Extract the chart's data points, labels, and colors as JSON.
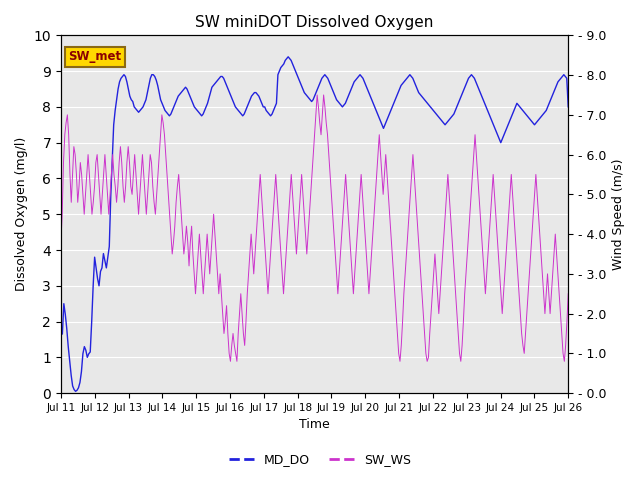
{
  "title": "SW miniDOT Dissolved Oxygen",
  "xlabel": "Time",
  "ylabel_left": "Dissolved Oxygen (mg/l)",
  "ylabel_right": "Wind Speed (m/s)",
  "ylim_left": [
    0,
    10
  ],
  "ylim_right": [
    0,
    9
  ],
  "yticks_left": [
    0.0,
    1.0,
    2.0,
    3.0,
    4.0,
    5.0,
    6.0,
    7.0,
    8.0,
    9.0,
    10.0
  ],
  "yticks_right_vals": [
    0.0,
    1.0,
    2.0,
    3.0,
    4.0,
    5.0,
    6.0,
    7.0,
    8.0,
    9.0
  ],
  "yticks_right_labels": [
    "0.0",
    "1.0",
    "2.0",
    "3.0",
    "4.0",
    "5.0",
    "6.0",
    "7.0",
    "8.0",
    "9.0"
  ],
  "background_color": "#e8e8e8",
  "line1_color": "#2222dd",
  "line2_color": "#cc33cc",
  "station_label": "SW_met",
  "legend_labels": [
    "MD_DO",
    "SW_WS"
  ],
  "md_do": [
    1.8,
    1.65,
    2.5,
    2.2,
    1.8,
    1.3,
    0.9,
    0.5,
    0.2,
    0.1,
    0.05,
    0.08,
    0.15,
    0.3,
    0.6,
    1.1,
    1.3,
    1.2,
    1.0,
    1.1,
    1.15,
    2.0,
    3.0,
    3.8,
    3.5,
    3.2,
    3.0,
    3.4,
    3.5,
    3.9,
    3.7,
    3.5,
    3.8,
    4.1,
    5.5,
    6.5,
    7.5,
    7.9,
    8.2,
    8.5,
    8.7,
    8.8,
    8.85,
    8.9,
    8.85,
    8.7,
    8.5,
    8.3,
    8.2,
    8.15,
    8.0,
    7.95,
    7.9,
    7.85,
    7.9,
    7.95,
    8.0,
    8.1,
    8.2,
    8.4,
    8.6,
    8.8,
    8.9,
    8.9,
    8.85,
    8.75,
    8.6,
    8.4,
    8.2,
    8.1,
    8.0,
    7.9,
    7.85,
    7.8,
    7.75,
    7.8,
    7.9,
    8.0,
    8.1,
    8.2,
    8.3,
    8.35,
    8.4,
    8.45,
    8.5,
    8.55,
    8.5,
    8.4,
    8.3,
    8.2,
    8.1,
    8.0,
    7.95,
    7.9,
    7.85,
    7.8,
    7.75,
    7.8,
    7.9,
    8.0,
    8.1,
    8.25,
    8.4,
    8.55,
    8.6,
    8.65,
    8.7,
    8.75,
    8.8,
    8.85,
    8.85,
    8.8,
    8.7,
    8.6,
    8.5,
    8.4,
    8.3,
    8.2,
    8.1,
    8.0,
    7.95,
    7.9,
    7.85,
    7.8,
    7.75,
    7.8,
    7.9,
    8.0,
    8.1,
    8.2,
    8.3,
    8.35,
    8.4,
    8.4,
    8.35,
    8.3,
    8.2,
    8.1,
    8.0,
    8.0,
    7.9,
    7.85,
    7.8,
    7.75,
    7.8,
    7.9,
    8.0,
    8.1,
    8.9,
    9.0,
    9.1,
    9.15,
    9.2,
    9.3,
    9.35,
    9.4,
    9.35,
    9.3,
    9.2,
    9.1,
    9.0,
    8.9,
    8.8,
    8.7,
    8.6,
    8.5,
    8.4,
    8.35,
    8.3,
    8.25,
    8.2,
    8.15,
    8.2,
    8.3,
    8.4,
    8.5,
    8.6,
    8.7,
    8.8,
    8.85,
    8.9,
    8.85,
    8.8,
    8.7,
    8.6,
    8.5,
    8.4,
    8.3,
    8.2,
    8.15,
    8.1,
    8.05,
    8.0,
    8.05,
    8.1,
    8.2,
    8.3,
    8.4,
    8.5,
    8.6,
    8.7,
    8.75,
    8.8,
    8.85,
    8.9,
    8.85,
    8.8,
    8.7,
    8.6,
    8.5,
    8.4,
    8.3,
    8.2,
    8.1,
    8.0,
    7.9,
    7.8,
    7.7,
    7.6,
    7.5,
    7.4,
    7.5,
    7.6,
    7.7,
    7.8,
    7.9,
    8.0,
    8.1,
    8.2,
    8.3,
    8.4,
    8.5,
    8.6,
    8.65,
    8.7,
    8.75,
    8.8,
    8.85,
    8.9,
    8.85,
    8.8,
    8.7,
    8.6,
    8.5,
    8.4,
    8.35,
    8.3,
    8.25,
    8.2,
    8.15,
    8.1,
    8.05,
    8.0,
    7.95,
    7.9,
    7.85,
    7.8,
    7.75,
    7.7,
    7.65,
    7.6,
    7.55,
    7.5,
    7.55,
    7.6,
    7.65,
    7.7,
    7.75,
    7.8,
    7.9,
    8.0,
    8.1,
    8.2,
    8.3,
    8.4,
    8.5,
    8.6,
    8.7,
    8.8,
    8.85,
    8.9,
    8.85,
    8.8,
    8.7,
    8.6,
    8.5,
    8.4,
    8.3,
    8.2,
    8.1,
    8.0,
    7.9,
    7.8,
    7.7,
    7.6,
    7.5,
    7.4,
    7.3,
    7.2,
    7.1,
    7.0,
    7.1,
    7.2,
    7.3,
    7.4,
    7.5,
    7.6,
    7.7,
    7.8,
    7.9,
    8.0,
    8.1,
    8.05,
    8.0,
    7.95,
    7.9,
    7.85,
    7.8,
    7.75,
    7.7,
    7.65,
    7.6,
    7.55,
    7.5,
    7.55,
    7.6,
    7.65,
    7.7,
    7.75,
    7.8,
    7.85,
    7.9,
    8.0,
    8.1,
    8.2,
    8.3,
    8.4,
    8.5,
    8.6,
    8.7,
    8.75,
    8.8,
    8.85,
    8.9,
    8.85,
    8.8,
    8.0
  ],
  "sw_ws": [
    3.8,
    4.5,
    5.8,
    6.5,
    6.8,
    7.0,
    6.5,
    5.5,
    4.8,
    5.5,
    6.2,
    6.0,
    5.5,
    4.8,
    5.2,
    5.8,
    5.5,
    5.0,
    4.5,
    5.0,
    5.5,
    6.0,
    5.5,
    5.0,
    4.5,
    4.8,
    5.2,
    5.8,
    6.0,
    5.5,
    5.0,
    4.5,
    5.0,
    5.5,
    6.0,
    5.5,
    5.0,
    4.5,
    5.0,
    5.5,
    6.0,
    5.5,
    5.2,
    4.8,
    5.2,
    5.8,
    6.2,
    5.8,
    5.2,
    4.8,
    5.2,
    5.8,
    6.2,
    5.8,
    5.2,
    5.0,
    5.5,
    6.0,
    5.5,
    5.0,
    4.5,
    5.0,
    5.5,
    6.0,
    5.5,
    5.0,
    4.5,
    5.0,
    5.5,
    6.0,
    5.8,
    5.2,
    4.8,
    4.5,
    5.0,
    5.5,
    6.0,
    6.5,
    7.0,
    6.8,
    6.5,
    6.0,
    5.5,
    5.0,
    4.5,
    4.0,
    3.5,
    3.8,
    4.2,
    4.8,
    5.2,
    5.5,
    5.0,
    4.5,
    4.0,
    3.5,
    3.8,
    4.2,
    3.8,
    3.2,
    3.8,
    4.2,
    3.5,
    3.0,
    2.5,
    3.0,
    3.5,
    4.0,
    3.5,
    3.0,
    2.5,
    3.0,
    3.5,
    4.0,
    3.5,
    3.0,
    3.5,
    4.0,
    4.5,
    4.0,
    3.5,
    3.0,
    2.5,
    3.0,
    2.5,
    2.0,
    1.5,
    1.8,
    2.2,
    1.5,
    1.0,
    0.8,
    1.2,
    1.5,
    1.2,
    1.0,
    0.8,
    1.5,
    2.0,
    2.5,
    2.0,
    1.5,
    1.2,
    1.8,
    2.5,
    3.0,
    3.5,
    4.0,
    3.5,
    3.0,
    3.5,
    4.0,
    4.5,
    5.0,
    5.5,
    5.0,
    4.5,
    4.0,
    3.5,
    3.0,
    2.5,
    3.0,
    3.5,
    4.0,
    4.5,
    5.0,
    5.5,
    5.0,
    4.5,
    4.0,
    3.5,
    3.0,
    2.5,
    3.0,
    3.5,
    4.0,
    4.5,
    5.0,
    5.5,
    5.0,
    4.5,
    4.0,
    3.5,
    4.0,
    4.5,
    5.0,
    5.5,
    5.0,
    4.5,
    4.0,
    3.5,
    4.0,
    4.5,
    5.0,
    5.5,
    6.0,
    6.5,
    7.0,
    7.5,
    7.2,
    6.8,
    6.5,
    7.0,
    7.5,
    7.2,
    6.8,
    6.5,
    6.0,
    5.5,
    5.0,
    4.5,
    4.0,
    3.5,
    3.0,
    2.5,
    3.0,
    3.5,
    4.0,
    4.5,
    5.0,
    5.5,
    5.0,
    4.5,
    4.0,
    3.5,
    3.0,
    2.5,
    3.0,
    3.5,
    4.0,
    4.5,
    5.0,
    5.5,
    5.0,
    4.5,
    4.0,
    3.5,
    3.0,
    2.5,
    3.0,
    3.5,
    4.0,
    4.5,
    5.0,
    5.5,
    6.0,
    6.5,
    6.0,
    5.5,
    5.0,
    5.5,
    6.0,
    5.5,
    5.0,
    4.5,
    4.0,
    3.5,
    3.0,
    2.5,
    2.0,
    1.5,
    1.0,
    0.8,
    1.2,
    1.8,
    2.5,
    3.0,
    3.5,
    4.0,
    4.5,
    5.0,
    5.5,
    6.0,
    5.5,
    5.0,
    4.5,
    4.0,
    3.5,
    3.0,
    2.5,
    2.0,
    1.5,
    1.0,
    0.8,
    0.9,
    1.5,
    2.0,
    2.5,
    3.0,
    3.5,
    3.0,
    2.5,
    2.0,
    2.5,
    3.0,
    3.5,
    4.0,
    4.5,
    5.0,
    5.5,
    5.0,
    4.5,
    4.0,
    3.5,
    3.0,
    2.5,
    2.0,
    1.5,
    1.0,
    0.8,
    1.2,
    1.8,
    2.5,
    3.0,
    3.5,
    4.0,
    4.5,
    5.0,
    5.5,
    6.0,
    6.5,
    6.0,
    5.5,
    5.0,
    4.5,
    4.0,
    3.5,
    3.0,
    2.5,
    3.0,
    3.5,
    4.0,
    4.5,
    5.0,
    5.5,
    5.0,
    4.5,
    4.0,
    3.5,
    3.0,
    2.5,
    2.0,
    2.5,
    3.0,
    3.5,
    4.0,
    4.5,
    5.0,
    5.5,
    5.0,
    4.5,
    4.0,
    3.5,
    3.0,
    2.5,
    2.0,
    1.5,
    1.2,
    1.0,
    1.5,
    2.0,
    2.5,
    3.0,
    3.5,
    4.0,
    4.5,
    5.0,
    5.5,
    5.0,
    4.5,
    4.0,
    3.5,
    3.0,
    2.5,
    2.0,
    2.5,
    3.0,
    2.5,
    2.0,
    2.5,
    3.0,
    3.5,
    4.0,
    3.5,
    3.0,
    2.5,
    2.0,
    1.5,
    1.0,
    0.8,
    1.2,
    1.8,
    2.5
  ],
  "xtick_labels": [
    "Jul 11",
    "Jul 12",
    "Jul 13",
    "Jul 14",
    "Jul 15",
    "Jul 16",
    "Jul 17",
    "Jul 18",
    "Jul 19",
    "Jul 20",
    "Jul 21",
    "Jul 22",
    "Jul 23",
    "Jul 24",
    "Jul 25",
    "Jul 26"
  ],
  "figsize": [
    6.4,
    4.8
  ],
  "dpi": 100
}
